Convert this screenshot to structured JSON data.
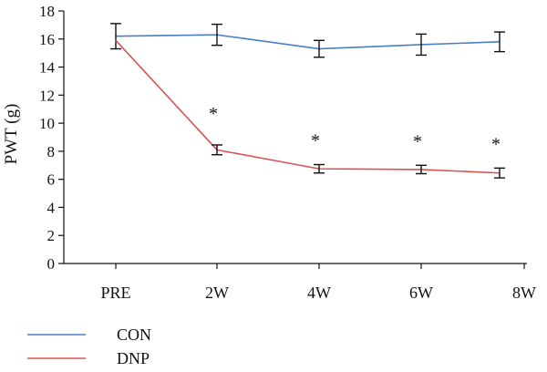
{
  "chart_data": {
    "type": "line",
    "title": "",
    "xlabel": "",
    "ylabel": "PWT (g)",
    "categories": [
      "PRE",
      "2W",
      "4W",
      "6W",
      "8W"
    ],
    "ylim": [
      0,
      18
    ],
    "yticks": [
      0,
      2,
      4,
      6,
      8,
      10,
      12,
      14,
      16,
      18
    ],
    "grid": false,
    "legend": "bottom-left",
    "series": [
      {
        "name": "CON",
        "color": "#4a7fc1",
        "values": [
          16.2,
          16.3,
          15.3,
          15.6,
          15.8
        ],
        "errors": [
          0.9,
          0.75,
          0.6,
          0.75,
          0.7
        ],
        "annotations": [
          "",
          "",
          "",
          "",
          ""
        ]
      },
      {
        "name": "DNP",
        "color": "#d9534f",
        "values": [
          15.9,
          8.1,
          6.75,
          6.7,
          6.45
        ],
        "errors": [
          0.0,
          0.35,
          0.3,
          0.3,
          0.35
        ],
        "annotations": [
          "",
          "*",
          "*",
          "*",
          "*"
        ]
      }
    ]
  }
}
